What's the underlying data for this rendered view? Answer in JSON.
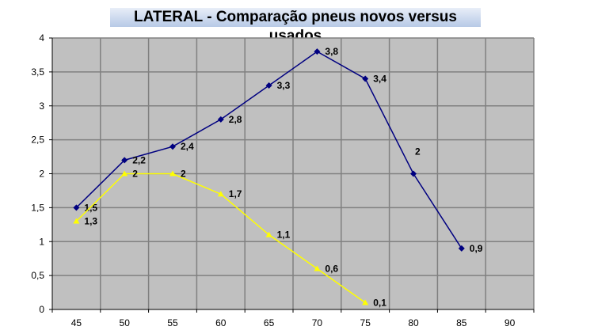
{
  "chart_data": {
    "type": "line",
    "title": "LATERAL  - Comparação pneus novos versus usados",
    "categories": [
      "45",
      "50",
      "55",
      "60",
      "65",
      "70",
      "75",
      "80",
      "85",
      "90"
    ],
    "ylim": [
      0,
      4
    ],
    "yticks": [
      "0",
      "0,5",
      "1",
      "1,5",
      "2",
      "2,5",
      "3",
      "3,5",
      "4"
    ],
    "grid": true,
    "series": [
      {
        "name": "novos",
        "color": "#000080",
        "marker": "diamond",
        "values": [
          1.5,
          2.2,
          2.4,
          2.8,
          3.3,
          3.8,
          3.4,
          2,
          0.9,
          null
        ],
        "labels": [
          "1,5",
          "2,2",
          "2,4",
          "2,8",
          "3,3",
          "3,8",
          "3,4",
          "2",
          "0,9",
          null
        ]
      },
      {
        "name": "usados",
        "color": "#ffff00",
        "marker": "triangle",
        "values": [
          1.3,
          2,
          2,
          1.7,
          1.1,
          0.6,
          0.1,
          null,
          null,
          null
        ],
        "labels": [
          "1,3",
          "2",
          "2",
          "1,7",
          "1,1",
          "0,6",
          "0,1",
          null,
          null,
          null
        ]
      }
    ]
  }
}
